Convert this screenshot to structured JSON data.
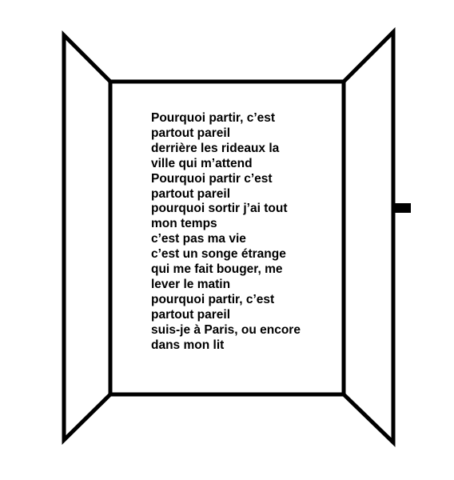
{
  "colors": {
    "background": "#ffffff",
    "line": "#000000",
    "text": "#000000"
  },
  "poem": {
    "lines": [
      "Pourquoi partir, c’est",
      "partout pareil",
      "derrière les rideaux la",
      "ville qui m’attend",
      "Pourquoi partir c’est",
      "partout pareil",
      "pourquoi sortir j’ai tout",
      "mon temps",
      "c’est pas ma vie",
      "c’est un songe étrange",
      "qui me fait bouger, me",
      "lever le matin",
      "pourquoi partir, c’est",
      "partout pareil",
      "suis-je à Paris, ou encore",
      "dans mon lit"
    ]
  }
}
